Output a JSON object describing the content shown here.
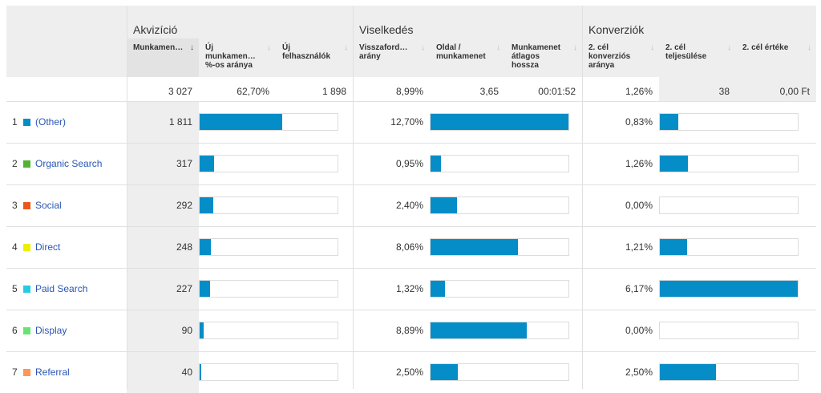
{
  "groups": {
    "acquisition": "Akvizíció",
    "behavior": "Viselkedés",
    "conversion": "Konverziók"
  },
  "columns": {
    "sessions": "Munkamen…",
    "new_sessions_pct_l1": "Új",
    "new_sessions_pct_l2": "munkamen…",
    "new_sessions_pct_l3": "%-os aránya",
    "new_users_l1": "Új",
    "new_users_l2": "felhasználók",
    "bounce_l1": "Visszaford…",
    "bounce_l2": "arány",
    "pages_l1": "Oldal /",
    "pages_l2": "munkamenet",
    "duration_l1": "Munkamenet",
    "duration_l2": "átlagos",
    "duration_l3": "hossza",
    "conv_rate_l1": "2. cél",
    "conv_rate_l2": "konverziós",
    "conv_rate_l3": "aránya",
    "completions_l1": "2. cél",
    "completions_l2": "teljesülése",
    "value_l1": "2. cél értéke",
    "sort_arrow": "↓",
    "sort_arrow_inactive": "↓"
  },
  "totals": {
    "sessions": "3 027",
    "new_sessions_pct": "62,70%",
    "new_users": "1 898",
    "bounce": "8,99%",
    "pages": "3,65",
    "duration": "00:01:52",
    "conv_rate": "1,26%",
    "completions": "38",
    "value": "0,00 Ft"
  },
  "bar_color": "#058dc7",
  "rows": [
    {
      "num": "1",
      "name": "(Other)",
      "color": "#058dc7",
      "sessions": "1 811",
      "sessions_frac": 0.5983,
      "bounce": "12,70%",
      "bounce_frac": 1.0,
      "conv": "0,83%",
      "conv_frac": 0.1345
    },
    {
      "num": "2",
      "name": "Organic Search",
      "color": "#50b432",
      "sessions": "317",
      "sessions_frac": 0.1047,
      "bounce": "0,95%",
      "bounce_frac": 0.0748,
      "conv": "1,26%",
      "conv_frac": 0.2042
    },
    {
      "num": "3",
      "name": "Social",
      "color": "#ed561b",
      "sessions": "292",
      "sessions_frac": 0.0965,
      "bounce": "2,40%",
      "bounce_frac": 0.189,
      "conv": "0,00%",
      "conv_frac": 0.0
    },
    {
      "num": "4",
      "name": "Direct",
      "color": "#edef00",
      "sessions": "248",
      "sessions_frac": 0.0819,
      "bounce": "8,06%",
      "bounce_frac": 0.6346,
      "conv": "1,21%",
      "conv_frac": 0.1961
    },
    {
      "num": "5",
      "name": "Paid Search",
      "color": "#24cbe5",
      "sessions": "227",
      "sessions_frac": 0.075,
      "bounce": "1,32%",
      "bounce_frac": 0.1039,
      "conv": "6,17%",
      "conv_frac": 1.0
    },
    {
      "num": "6",
      "name": "Display",
      "color": "#64e572",
      "sessions": "90",
      "sessions_frac": 0.0297,
      "bounce": "8,89%",
      "bounce_frac": 0.7,
      "conv": "0,00%",
      "conv_frac": 0.0
    },
    {
      "num": "7",
      "name": "Referral",
      "color": "#ff9655",
      "sessions": "40",
      "sessions_frac": 0.0132,
      "bounce": "2,50%",
      "bounce_frac": 0.1969,
      "conv": "2,50%",
      "conv_frac": 0.4052
    }
  ]
}
